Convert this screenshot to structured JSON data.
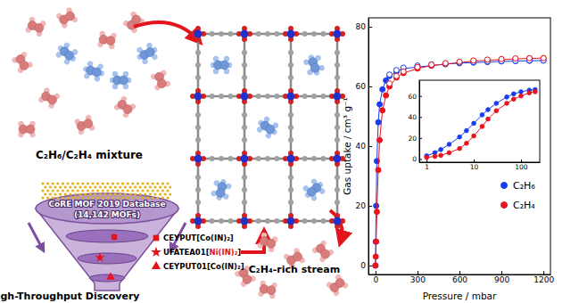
{
  "diagram": {
    "mixture_label": "C₂H₆/C₂H₄ mixture",
    "database": {
      "name": "CoRE MOF 2019 Database",
      "count": "(14,142 MOFs)"
    },
    "funnel_label": "High-Throughput Discovery",
    "candidates": [
      {
        "label": "CEYPUT[Co(IN)₂]",
        "marker": "square"
      },
      {
        "label": "UFATEA01[Ni(IN)₂]",
        "marker": "star",
        "highlight": true
      },
      {
        "label": "CEYPUT01[Co(IN)₂]",
        "marker": "triangle"
      }
    ],
    "output_label": "C₂H₄-rich stream"
  },
  "chart_data": [
    {
      "type": "line",
      "xlabel": "Pressure / mbar",
      "ylabel": "Gas uptake / cm³ g⁻¹",
      "x": [
        0,
        2,
        5,
        10,
        20,
        30,
        50,
        75,
        100,
        150,
        200,
        300,
        400,
        500,
        600,
        700,
        800,
        900,
        1000,
        1100,
        1200
      ],
      "series": [
        {
          "name": "C₂H₆",
          "color": "#1a3cf0",
          "marker": "circle",
          "line_style": "solid",
          "values": [
            0,
            8,
            20,
            35,
            48,
            54,
            59,
            62,
            63.5,
            65,
            66,
            66.5,
            67,
            67.5,
            67.8,
            68,
            68.2,
            68.4,
            68.5,
            68.6,
            68.7
          ]
        },
        {
          "name": "C₂H₄",
          "color": "#e8141e",
          "marker": "circle",
          "line_style": "solid",
          "values": [
            0,
            3,
            8,
            18,
            32,
            42,
            52,
            57,
            60,
            63,
            64.5,
            66,
            67,
            67.5,
            68,
            68.5,
            68.8,
            69,
            69.2,
            69.4,
            69.5
          ]
        },
        {
          "color": "#1a3cf0",
          "marker": "open-circle",
          "line_style": "none",
          "values": [
            null,
            null,
            null,
            null,
            null,
            null,
            null,
            null,
            64,
            65.5,
            66.3,
            67,
            67.4,
            67.7,
            68,
            68.2,
            68.4,
            68.5,
            68.6,
            68.7,
            68.7
          ]
        },
        {
          "color": "#e8141e",
          "marker": "open-circle",
          "line_style": "none",
          "values": [
            null,
            null,
            null,
            null,
            null,
            null,
            null,
            null,
            61,
            63.5,
            65,
            66.5,
            67.3,
            67.8,
            68.3,
            68.7,
            69,
            69.2,
            69.4,
            69.5,
            69.5
          ]
        }
      ],
      "xlim": [
        -50,
        1250
      ],
      "xticks": [
        0,
        300,
        600,
        900,
        1200
      ],
      "ylim": [
        -3,
        83
      ],
      "yticks": [
        0,
        20,
        40,
        60,
        80
      ],
      "legend": "lower right"
    },
    {
      "type": "line",
      "x": [
        1,
        1.5,
        2,
        3,
        5,
        7,
        10,
        15,
        20,
        30,
        50,
        70,
        100,
        150,
        200
      ],
      "series": [
        {
          "color": "#1a3cf0",
          "marker": "circle",
          "line_style": "solid",
          "values": [
            3,
            6,
            9,
            14,
            21,
            27,
            34,
            42,
            47,
            53,
            59,
            62,
            64,
            65.5,
            66
          ]
        },
        {
          "color": "#e8141e",
          "marker": "circle",
          "line_style": "solid",
          "values": [
            1.5,
            2.5,
            3.5,
            6,
            10,
            15,
            22,
            31,
            38,
            46,
            53,
            57,
            60,
            63,
            64
          ]
        }
      ],
      "log": "x",
      "xlim": [
        0.7,
        250
      ],
      "xticks": [
        1,
        10,
        100
      ],
      "ylim": [
        -3,
        75
      ],
      "yticks": [
        0,
        20,
        40,
        60
      ]
    }
  ]
}
